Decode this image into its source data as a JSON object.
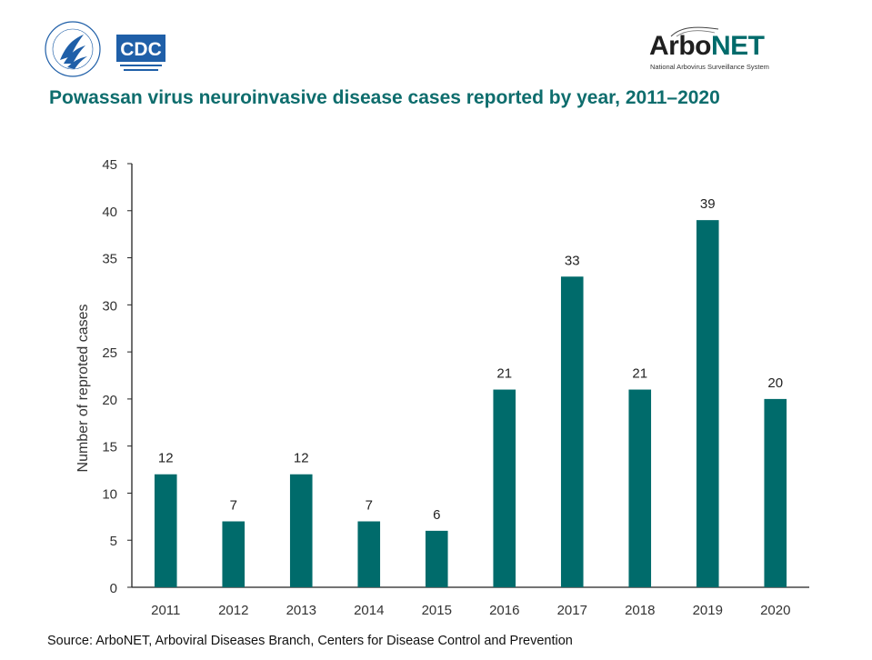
{
  "header": {
    "cdc_logo_text": "CDC",
    "arbonet_brand_prefix": "Arbo",
    "arbonet_brand_suffix": "NET",
    "arbonet_subtitle": "National Arbovirus Surveillance System"
  },
  "chart_data": {
    "type": "bar",
    "title": "Powassan virus neuroinvasive disease cases reported by year, 2011–2020",
    "xlabel": "",
    "ylabel": "Number of reproted cases",
    "categories": [
      "2011",
      "2012",
      "2013",
      "2014",
      "2015",
      "2016",
      "2017",
      "2018",
      "2019",
      "2020"
    ],
    "values": [
      12,
      7,
      12,
      7,
      6,
      21,
      33,
      21,
      39,
      20
    ],
    "ylim": [
      0,
      45
    ],
    "yticks": [
      0,
      5,
      10,
      15,
      20,
      25,
      30,
      35,
      40,
      45
    ],
    "grid": false,
    "legend": "none",
    "bar_color": "#006b6b",
    "data_labels": true
  },
  "footer": {
    "source": "Source: ArboNET, Arboviral Diseases Branch, Centers for Disease Control and Prevention"
  }
}
